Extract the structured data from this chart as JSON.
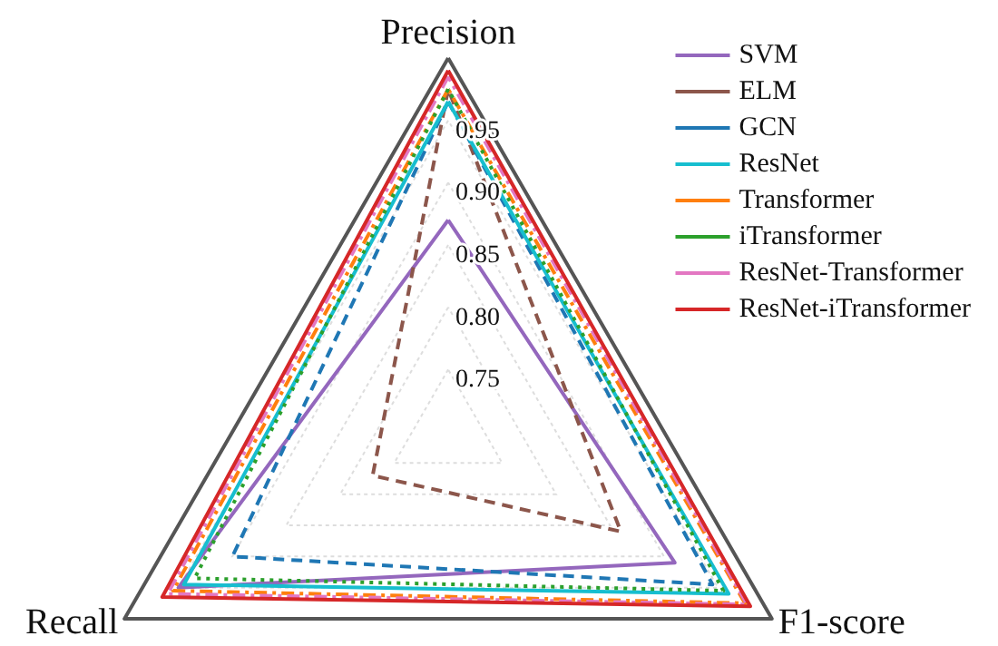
{
  "chart_data": {
    "type": "radar",
    "categories": [
      "Precision",
      "F1-score",
      "Recall"
    ],
    "ylim": [
      0.7,
      1.0
    ],
    "yticks": [
      0.75,
      {
        "value": 0.8,
        "label": "0.80"
      },
      0.85,
      {
        "value": 0.9,
        "label": "0.90"
      },
      0.95
    ],
    "grid": true,
    "legend": "top right",
    "marker": "none",
    "series": [
      {
        "name": "SVM",
        "color": "#9467bd",
        "line_style": "solid",
        "values": [
          0.87,
          0.91,
          0.95
        ]
      },
      {
        "name": "ELM",
        "color": "#8c564b",
        "line_style": "dashed",
        "values": [
          0.975,
          0.86,
          0.77
        ]
      },
      {
        "name": "GCN",
        "color": "#1f77b4",
        "line_style": "dashed",
        "values": [
          0.965,
          0.945,
          0.9
        ]
      },
      {
        "name": "ResNet",
        "color": "#17becf",
        "line_style": "solid",
        "values": [
          0.965,
          0.96,
          0.945
        ]
      },
      {
        "name": "Transformer",
        "color": "#ff7f0e",
        "line_style": "dashdot",
        "values": [
          0.975,
          0.975,
          0.955
        ]
      },
      {
        "name": "iTransformer",
        "color": "#2ca02c",
        "line_style": "dotted",
        "values": [
          0.975,
          0.955,
          0.935
        ]
      },
      {
        "name": "ResNet-Transformer",
        "color": "#e377c2",
        "line_style": "dashdot",
        "values": [
          0.985,
          0.977,
          0.96
        ]
      },
      {
        "name": "ResNet-iTransformer",
        "color": "#d62728",
        "line_style": "solid",
        "values": [
          0.99,
          0.98,
          0.965
        ]
      }
    ]
  }
}
